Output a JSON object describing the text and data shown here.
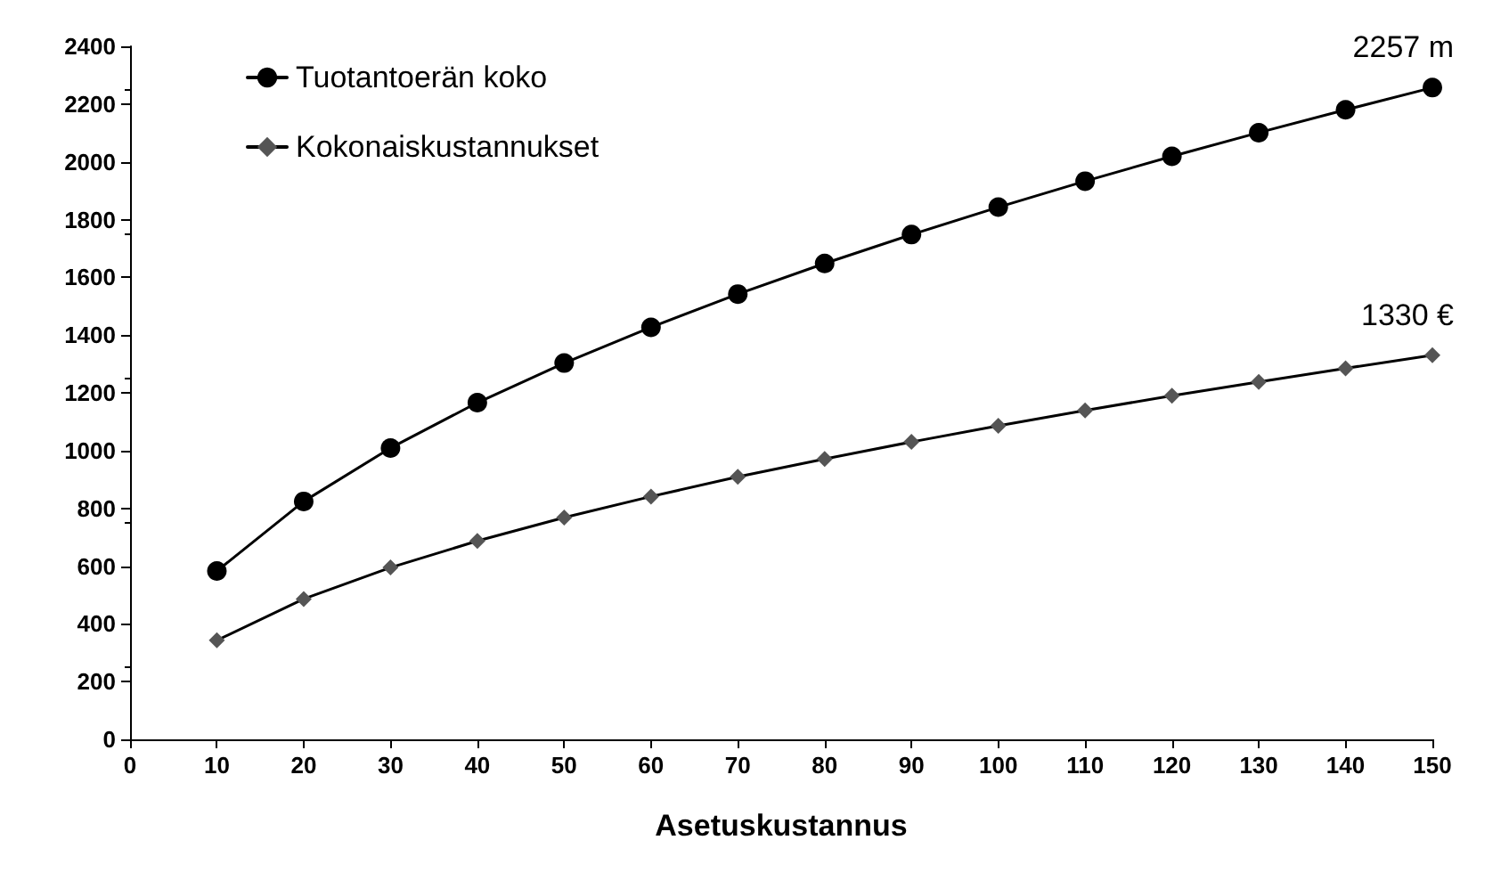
{
  "chart_data": {
    "type": "line",
    "xlabel": "Asetuskustannus",
    "x": [
      10,
      20,
      30,
      40,
      50,
      60,
      70,
      80,
      90,
      100,
      110,
      120,
      130,
      140,
      150
    ],
    "series": [
      {
        "name": "Tuotantoerän koko",
        "color": "#000000",
        "marker": "circle",
        "values": [
          583,
          824,
          1009,
          1166,
          1303,
          1427,
          1542,
          1648,
          1748,
          1843,
          1933,
          2019,
          2101,
          2180,
          2257
        ]
      },
      {
        "name": "Kokonaiskustannukset",
        "color": "#555555",
        "marker": "diamond",
        "values": [
          343,
          486,
          595,
          687,
          768,
          841,
          909,
          971,
          1030,
          1086,
          1139,
          1190,
          1238,
          1285,
          1330
        ]
      }
    ],
    "xlim": [
      0,
      150
    ],
    "xticks": [
      0,
      10,
      20,
      30,
      40,
      50,
      60,
      70,
      80,
      90,
      100,
      110,
      120,
      130,
      140,
      150
    ],
    "ylim": [
      0,
      2400
    ],
    "yticks": [
      0,
      200,
      400,
      600,
      800,
      1000,
      1200,
      1400,
      1600,
      1800,
      2000,
      2200,
      2400
    ],
    "annotations": [
      {
        "text": "2257 m",
        "x": 150,
        "y": 2257
      },
      {
        "text": "1330 €",
        "x": 150,
        "y": 1330
      }
    ],
    "legend": "top left",
    "grid": false,
    "line_style": "solid"
  }
}
